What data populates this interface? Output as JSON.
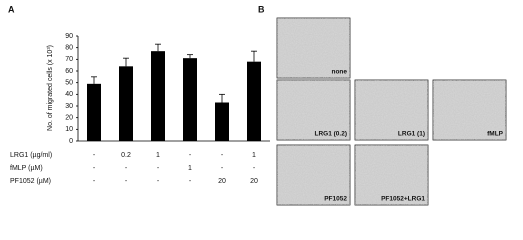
{
  "panel_a": {
    "label": "A"
  },
  "panel_b": {
    "label": "B",
    "images": [
      {
        "label": "none"
      },
      {
        "label": "LRG1 (0.2)"
      },
      {
        "label": "LRG1 (1)"
      },
      {
        "label": "fMLP"
      },
      {
        "label": "PF1052"
      },
      {
        "label": "PF1052+LRG1"
      }
    ]
  },
  "chart_data": {
    "type": "bar",
    "y_label": "No. of migrated cells (x 10³)",
    "values": [
      49,
      64,
      77,
      71,
      33,
      68
    ],
    "errors": [
      6,
      7,
      6,
      3,
      7,
      9
    ],
    "color": "#000000",
    "ylim": [
      0,
      90
    ],
    "yticks": [
      0,
      10,
      20,
      30,
      40,
      50,
      60,
      70,
      80,
      90
    ],
    "treatments": [
      {
        "label": "LRG1 (µg/ml)",
        "values": [
          "-",
          "0.2",
          "1",
          "-",
          "-",
          "1"
        ]
      },
      {
        "label": "fMLP (µM)",
        "values": [
          "-",
          "-",
          "-",
          "1",
          "-",
          "-"
        ]
      },
      {
        "label": "PF1052 (µM)",
        "values": [
          "-",
          "-",
          "-",
          "-",
          "20",
          "20"
        ]
      }
    ]
  }
}
